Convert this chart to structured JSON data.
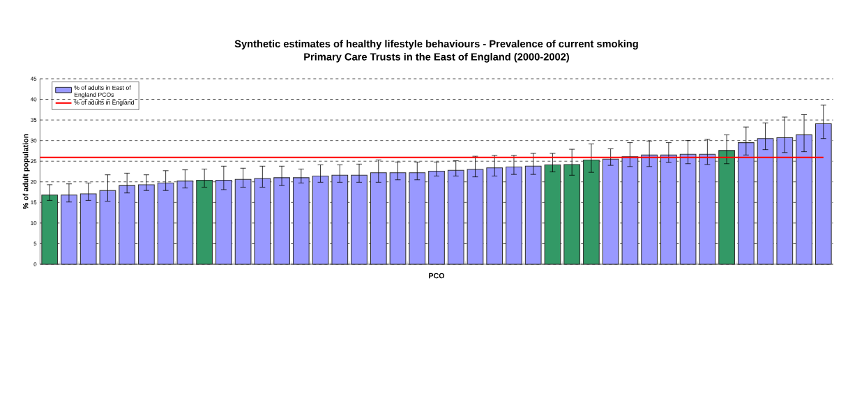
{
  "chart_data": {
    "type": "bar",
    "title": "Synthetic estimates of healthy lifestyle behaviours - Prevalence of current smoking",
    "subtitle": "Primary Care Trusts in the East of England (2000-2002)",
    "xlabel": "PCO",
    "ylabel": "% of adult population",
    "categories": [
      null,
      null,
      null,
      null,
      null,
      null,
      null,
      null,
      null,
      null,
      null,
      null,
      null,
      null,
      null,
      null,
      null,
      null,
      null,
      null,
      null,
      null,
      null,
      null,
      null,
      null,
      null,
      null,
      null,
      null,
      null,
      null,
      null,
      null,
      null,
      null,
      null,
      null,
      null,
      null,
      null
    ],
    "series": [
      {
        "name": "% of adults in East of England PCOs",
        "color": "#9999ff",
        "values": [
          16.8,
          16.8,
          17.1,
          17.9,
          19.1,
          19.3,
          19.7,
          20.2,
          20.4,
          20.4,
          20.6,
          20.8,
          21.0,
          21.0,
          21.4,
          21.6,
          21.6,
          22.2,
          22.2,
          22.2,
          22.6,
          22.8,
          23.0,
          23.4,
          23.6,
          23.8,
          24.1,
          24.2,
          25.3,
          25.5,
          26.1,
          26.5,
          26.5,
          26.7,
          26.7,
          27.6,
          29.5,
          30.5,
          30.7,
          31.4,
          34.1
        ],
        "colors": [
          "#339966",
          "#9999ff",
          "#9999ff",
          "#9999ff",
          "#9999ff",
          "#9999ff",
          "#9999ff",
          "#9999ff",
          "#339966",
          "#9999ff",
          "#9999ff",
          "#9999ff",
          "#9999ff",
          "#9999ff",
          "#9999ff",
          "#9999ff",
          "#9999ff",
          "#9999ff",
          "#9999ff",
          "#9999ff",
          "#9999ff",
          "#9999ff",
          "#9999ff",
          "#9999ff",
          "#9999ff",
          "#9999ff",
          "#339966",
          "#339966",
          "#339966",
          "#9999ff",
          "#9999ff",
          "#9999ff",
          "#9999ff",
          "#9999ff",
          "#9999ff",
          "#339966",
          "#9999ff",
          "#9999ff",
          "#9999ff",
          "#9999ff",
          "#9999ff"
        ],
        "errors": [
          [
            15.5,
            19.3
          ],
          [
            15.1,
            19.5
          ],
          [
            15.5,
            19.7
          ],
          [
            15.3,
            21.7
          ],
          [
            17.3,
            22.1
          ],
          [
            17.9,
            21.7
          ],
          [
            17.9,
            22.7
          ],
          [
            18.5,
            22.9
          ],
          [
            18.7,
            23.1
          ],
          [
            18.1,
            23.8
          ],
          [
            18.7,
            23.3
          ],
          [
            18.7,
            23.8
          ],
          [
            19.1,
            23.8
          ],
          [
            19.7,
            23.1
          ],
          [
            19.9,
            24.1
          ],
          [
            19.9,
            24.1
          ],
          [
            19.9,
            24.3
          ],
          [
            19.9,
            25.3
          ],
          [
            20.5,
            24.8
          ],
          [
            20.5,
            24.8
          ],
          [
            21.4,
            24.8
          ],
          [
            21.4,
            25.1
          ],
          [
            21.2,
            26.2
          ],
          [
            21.4,
            26.4
          ],
          [
            21.8,
            26.4
          ],
          [
            21.8,
            26.9
          ],
          [
            22.4,
            26.9
          ],
          [
            21.6,
            27.9
          ],
          [
            22.3,
            29.2
          ],
          [
            24.0,
            28.0
          ],
          [
            23.7,
            29.5
          ],
          [
            23.7,
            29.9
          ],
          [
            24.7,
            29.5
          ],
          [
            24.4,
            30.0
          ],
          [
            24.2,
            30.3
          ],
          [
            24.4,
            31.4
          ],
          [
            26.5,
            33.3
          ],
          [
            27.8,
            34.3
          ],
          [
            27.1,
            35.7
          ],
          [
            27.3,
            36.3
          ],
          [
            30.5,
            38.6
          ]
        ]
      }
    ],
    "ref_lines": [
      {
        "axis": "y",
        "value": 25.9,
        "label": "% of adults in England",
        "color": "#ff0000"
      }
    ],
    "ylim": [
      0,
      45
    ],
    "yticks": [
      0,
      5,
      10,
      15,
      20,
      25,
      30,
      35,
      40,
      45
    ],
    "grid": "y",
    "legend": "top left"
  }
}
